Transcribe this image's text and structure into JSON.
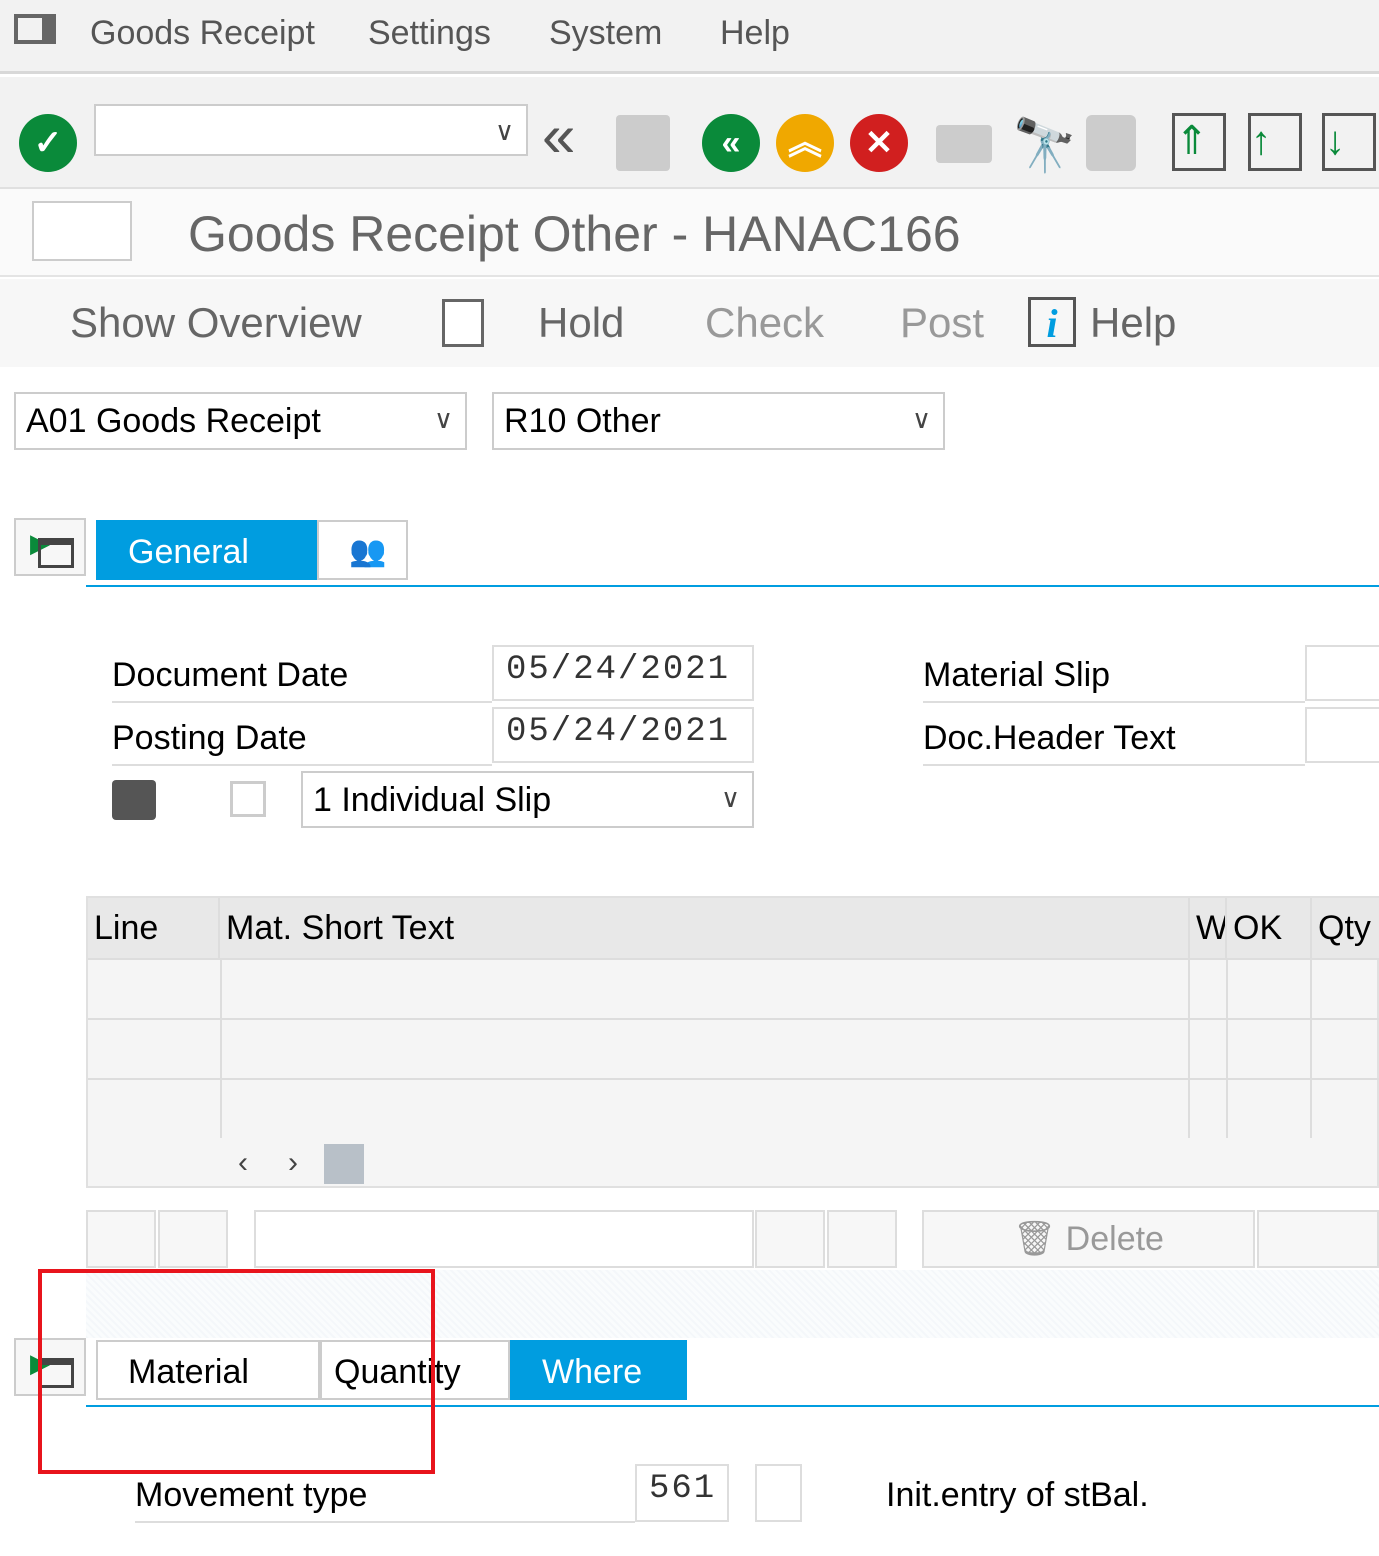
{
  "menubar": {
    "items": [
      "Goods Receipt",
      "Settings",
      "System",
      "Help"
    ]
  },
  "toolbar": {
    "command_value": "",
    "icons": [
      "enter-icon",
      "back-icon",
      "save-icon",
      "back-green-icon",
      "exit-icon",
      "cancel-icon",
      "print-icon",
      "find-icon",
      "find-next-icon",
      "first-page-icon",
      "previous-page-icon",
      "next-page-icon"
    ]
  },
  "title": "Goods Receipt Other - HANAC166",
  "app_toolbar": {
    "show_overview": "Show Overview",
    "hold": "Hold",
    "check": "Check",
    "post": "Post",
    "help": "Help"
  },
  "transaction": {
    "action": "A01 Goods Receipt",
    "reference": "R10 Other"
  },
  "header_tabs": {
    "general": "General"
  },
  "general": {
    "document_date_label": "Document Date",
    "document_date": "05/24/2021",
    "posting_date_label": "Posting Date",
    "posting_date": "05/24/2021",
    "slip_option": "1 Individual Slip",
    "material_slip_label": "Material Slip",
    "material_slip": "",
    "doc_header_text_label": "Doc.Header Text",
    "doc_header_text": ""
  },
  "grid": {
    "columns": [
      "Line",
      "Mat. Short Text",
      "W",
      "OK",
      "Qty"
    ],
    "rows": [
      [],
      [],
      []
    ]
  },
  "grid_toolbar": {
    "delete": "Delete",
    "search_value": ""
  },
  "detail_tabs": {
    "material": "Material",
    "quantity": "Quantity",
    "where": "Where"
  },
  "where": {
    "movement_type_label": "Movement type",
    "movement_type": "561",
    "special_stock": "",
    "movement_type_text": "Init.entry of stBal."
  },
  "colors": {
    "accent": "#009de0",
    "highlight_box": "#e8141c",
    "ok": "#0a8a3a",
    "warning": "#f0a800",
    "error": "#d11f1f"
  }
}
